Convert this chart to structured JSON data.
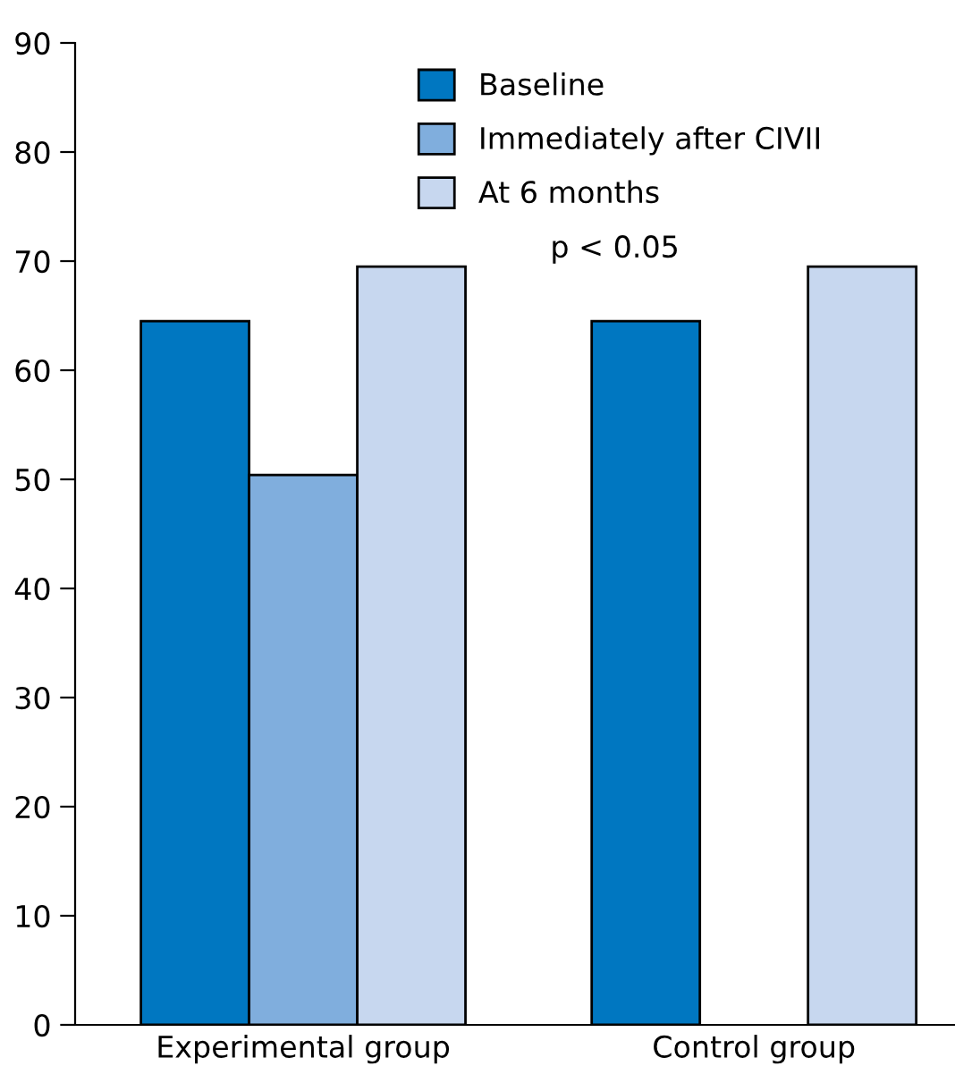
{
  "chart_data": {
    "type": "bar",
    "categories": [
      "Experimental group",
      "Control group"
    ],
    "series": [
      {
        "name": "Baseline",
        "color": "#0077c1",
        "values": [
          64.5,
          64.5
        ]
      },
      {
        "name": "Immediately after CIVII",
        "color": "#80aedd",
        "values": [
          50.4,
          null
        ]
      },
      {
        "name": "At 6 months",
        "color": "#c7d7ef",
        "values": [
          69.5,
          69.5
        ]
      }
    ],
    "ylim": [
      0,
      90
    ],
    "yticks": [
      0,
      10,
      20,
      30,
      40,
      50,
      60,
      70,
      80,
      90
    ],
    "annotations": [
      "p < 0.05"
    ],
    "legend": "top",
    "grid": false
  }
}
